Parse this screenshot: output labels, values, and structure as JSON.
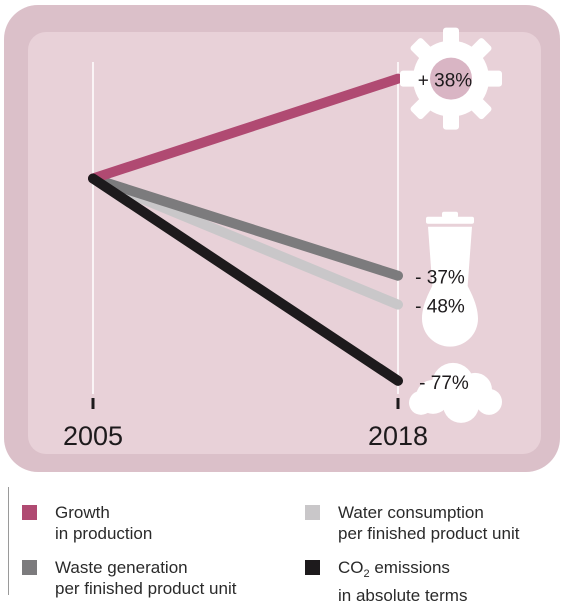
{
  "chart_data": {
    "type": "line",
    "x": [
      "2005",
      "2018"
    ],
    "series": [
      {
        "name": "Growth in production",
        "values": [
          100,
          138
        ],
        "change_label": "+ 38%",
        "color": "#b04a72",
        "icon": "gear-icon"
      },
      {
        "name": "Waste generation per finished product unit",
        "values": [
          100,
          63
        ],
        "change_label": "- 37%",
        "color": "#7c7b7d",
        "icon": "trash-can-icon"
      },
      {
        "name": "Water consumption per finished product unit",
        "values": [
          100,
          52
        ],
        "change_label": "- 48%",
        "color": "#c9c7c9",
        "icon": "water-drop-icon"
      },
      {
        "name": "CO2 emissions in absolute terms",
        "values": [
          100,
          23
        ],
        "change_label": "- 77%",
        "color": "#1d1a1c",
        "icon": "cloud-icon"
      }
    ],
    "ylim": [
      10,
      147
    ],
    "grid": false,
    "legend": "bottom"
  },
  "legend": [
    {
      "line1": "Growth",
      "line2": "in production",
      "color": "#b04a72"
    },
    {
      "line1": "Water consumption",
      "line2": "per finished product unit",
      "color": "#c9c7c9"
    },
    {
      "line1": "Waste generation",
      "line2": "per finished product unit",
      "color": "#7c7b7d"
    },
    {
      "line1_pre": "CO",
      "line1_sub": "2",
      "line1_post": " emissions",
      "line2": "in absolute terms",
      "color": "#1d1a1c"
    }
  ],
  "colors": {
    "outer_frame": "#dbc0c9",
    "inner_panel": "#e8d1d8"
  }
}
